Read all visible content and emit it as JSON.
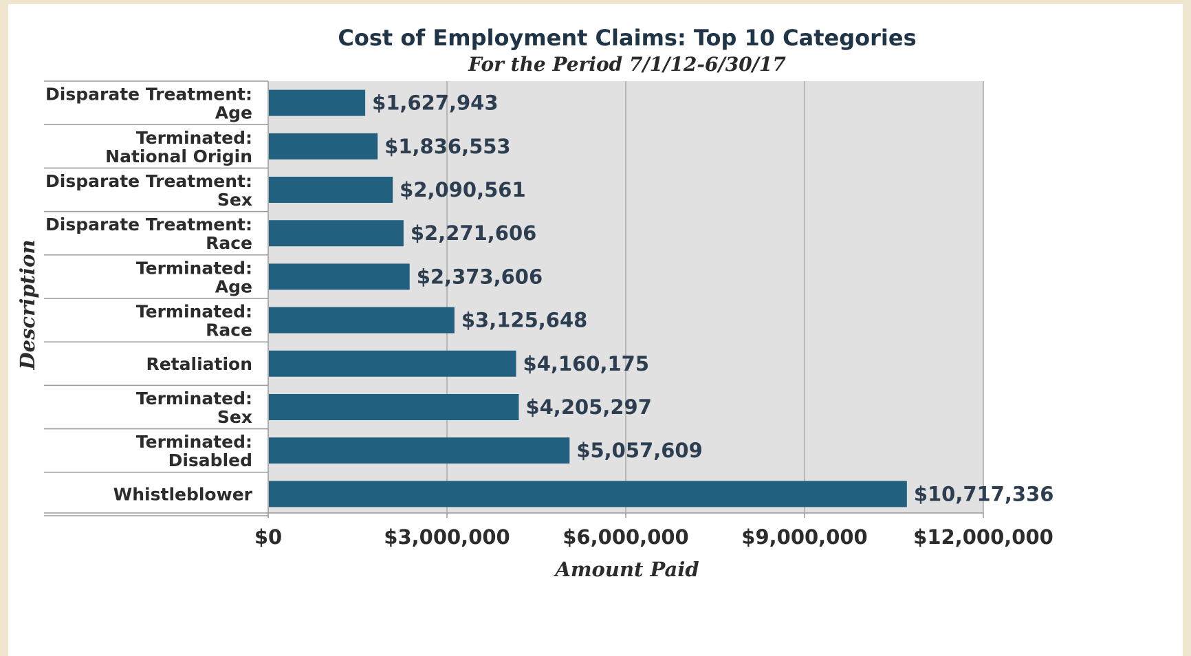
{
  "chart_data": {
    "type": "bar",
    "orientation": "horizontal",
    "title": "Cost of Employment Claims: Top 10 Categories",
    "subtitle": "For the Period 7/1/12-6/30/17",
    "xlabel": "Amount Paid",
    "ylabel": "Description",
    "xlim": [
      0,
      12000000
    ],
    "x_ticks": [
      0,
      3000000,
      6000000,
      9000000,
      12000000
    ],
    "x_tick_labels": [
      "$0",
      "$3,000,000",
      "$6,000,000",
      "$9,000,000",
      "$12,000,000"
    ],
    "grid": "vertical",
    "categories": [
      [
        "Disparate Treatment:",
        "Age"
      ],
      [
        "Terminated:",
        "National Origin"
      ],
      [
        "Disparate Treatment:",
        "Sex"
      ],
      [
        "Disparate Treatment:",
        "Race"
      ],
      [
        "Terminated:",
        "Age"
      ],
      [
        "Terminated:",
        "Race"
      ],
      [
        "Retaliation"
      ],
      [
        "Terminated:",
        "Sex"
      ],
      [
        "Terminated:",
        "Disabled"
      ],
      [
        "Whistleblower"
      ]
    ],
    "values": [
      1627943,
      1836553,
      2090561,
      2271606,
      2373606,
      3125648,
      4160175,
      4205297,
      5057609,
      10717336
    ],
    "value_labels": [
      "$1,627,943",
      "$1,836,553",
      "$2,090,561",
      "$2,271,606",
      "$2,373,606",
      "$3,125,648",
      "$4,160,175",
      "$4,205,297",
      "$5,057,609",
      "$10,717,336"
    ],
    "colors": {
      "bar": "#22607f",
      "plot_bg": "#e1e1e1",
      "grid": "#a9a9a9",
      "text": "#2c2c2c"
    }
  }
}
